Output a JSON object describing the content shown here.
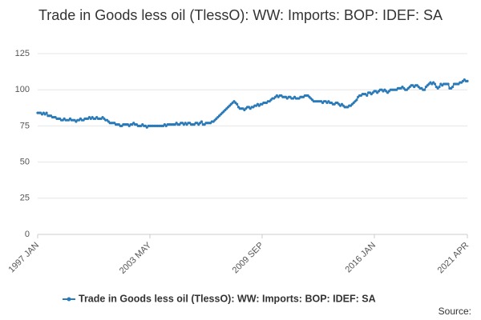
{
  "chart_data": {
    "type": "line",
    "title": "Trade in Goods less oil (TlessO): WW: Imports: BOP: IDEF: SA",
    "source": "Source:",
    "categories": [
      "1997 JAN",
      null,
      null,
      null,
      null,
      null,
      null,
      null,
      null,
      null,
      null,
      null,
      null,
      null,
      null,
      null,
      null,
      null,
      null,
      null,
      null,
      null,
      null,
      null,
      null,
      null,
      null,
      null,
      null,
      null,
      null,
      null,
      null,
      null,
      null,
      null,
      null,
      null,
      null,
      null,
      null,
      null,
      null,
      null,
      null,
      null,
      null,
      null,
      null,
      null,
      null,
      null,
      null,
      null,
      null,
      null,
      null,
      null,
      null,
      null,
      null,
      null,
      null,
      null,
      null,
      null,
      null,
      null,
      null,
      null,
      null,
      null,
      null,
      null,
      null,
      null,
      "2003 MAY",
      null,
      null,
      null,
      null,
      null,
      null,
      null,
      null,
      null,
      null,
      null,
      null,
      null,
      null,
      null,
      null,
      null,
      null,
      null,
      null,
      null,
      null,
      null,
      null,
      null,
      null,
      null,
      null,
      null,
      null,
      null,
      null,
      null,
      null,
      null,
      null,
      null,
      null,
      null,
      null,
      null,
      null,
      null,
      null,
      null,
      null,
      null,
      null,
      null,
      null,
      null,
      null,
      null,
      null,
      null,
      null,
      null,
      null,
      null,
      null,
      null,
      null,
      null,
      null,
      null,
      null,
      null,
      null,
      null,
      null,
      null,
      null,
      null,
      null,
      null,
      "2009 SEP",
      null,
      null,
      null,
      null,
      null,
      null,
      null,
      null,
      null,
      null,
      null,
      null,
      null,
      null,
      null,
      null,
      null,
      null,
      null,
      null,
      null,
      null,
      null,
      null,
      null,
      null,
      null,
      null,
      null,
      null,
      null,
      null,
      null,
      null,
      null,
      null,
      null,
      null,
      null,
      null,
      null,
      null,
      null,
      null,
      null,
      null,
      null,
      null,
      null,
      null,
      null,
      null,
      null,
      null,
      null,
      null,
      null,
      null,
      null,
      null,
      null,
      null,
      null,
      null,
      null,
      null,
      null,
      null,
      null,
      null,
      null,
      null,
      null,
      null,
      null,
      "2016 JAN",
      null,
      null,
      null,
      null,
      null,
      null,
      null,
      null,
      null,
      null,
      null,
      null,
      null,
      null,
      null,
      null,
      null,
      null,
      null,
      null,
      null,
      null,
      null,
      null,
      null,
      null,
      null,
      null,
      null,
      null,
      null,
      null,
      null,
      null,
      null,
      null,
      null,
      null,
      null,
      null,
      null,
      null,
      null,
      null,
      null,
      null,
      null,
      null,
      null,
      null,
      null,
      null,
      null,
      null,
      null,
      null,
      null,
      null,
      null,
      null,
      null,
      null,
      "2021 APR"
    ],
    "series": [
      {
        "name": "Trade in Goods less oil (TlessO): WW: Imports: BOP: IDEF: SA",
        "color": "#2a7ab8",
        "values": [
          84,
          84,
          84,
          83,
          84,
          83,
          84,
          82,
          82,
          82,
          81,
          81,
          81,
          80,
          80,
          80,
          79,
          79,
          80,
          79,
          79,
          79,
          80,
          79,
          79,
          79,
          78,
          79,
          79,
          80,
          79,
          79,
          80,
          80,
          80,
          81,
          80,
          81,
          80,
          80,
          81,
          80,
          80,
          80,
          81,
          80,
          79,
          79,
          78,
          77,
          77,
          77,
          77,
          76,
          76,
          76,
          75,
          75,
          76,
          76,
          76,
          76,
          75,
          76,
          76,
          77,
          76,
          76,
          75,
          75,
          75,
          76,
          75,
          75,
          74,
          75,
          75,
          75,
          75,
          75,
          75,
          75,
          75,
          75,
          75,
          75,
          76,
          75,
          76,
          76,
          76,
          76,
          76,
          76,
          77,
          76,
          76,
          77,
          77,
          76,
          77,
          76,
          77,
          77,
          76,
          76,
          76,
          77,
          77,
          76,
          77,
          78,
          76,
          76,
          77,
          77,
          77,
          77,
          78,
          78,
          79,
          80,
          81,
          82,
          83,
          84,
          85,
          86,
          87,
          88,
          89,
          90,
          91,
          92,
          91,
          90,
          88,
          87,
          87,
          87,
          86,
          87,
          88,
          88,
          87,
          88,
          88,
          89,
          89,
          90,
          89,
          90,
          90,
          91,
          91,
          91,
          92,
          92,
          93,
          94,
          94,
          95,
          96,
          95,
          96,
          96,
          95,
          95,
          95,
          94,
          95,
          95,
          94,
          94,
          95,
          94,
          94,
          94,
          95,
          95,
          95,
          96,
          96,
          96,
          95,
          94,
          93,
          92,
          92,
          92,
          92,
          92,
          92,
          91,
          92,
          92,
          91,
          92,
          91,
          91,
          90,
          90,
          91,
          91,
          90,
          89,
          90,
          89,
          88,
          88,
          88,
          89,
          89,
          90,
          91,
          92,
          93,
          95,
          96,
          96,
          97,
          97,
          97,
          96,
          98,
          98,
          97,
          98,
          99,
          99,
          98,
          99,
          100,
          100,
          99,
          100,
          99,
          98,
          99,
          100,
          100,
          100,
          100,
          100,
          101,
          101,
          101,
          102,
          101,
          100,
          100,
          101,
          102,
          103,
          103,
          102,
          103,
          103,
          102,
          101,
          101,
          100,
          100,
          102,
          103,
          104,
          105,
          104,
          105,
          104,
          102,
          101,
          102,
          104,
          103,
          104,
          104,
          104,
          104,
          101,
          101,
          102,
          104,
          104,
          104,
          104,
          105,
          105,
          106,
          107,
          106,
          106
        ]
      }
    ],
    "ylim": [
      0,
      125
    ],
    "yticks": [
      0,
      25,
      50,
      75,
      100,
      125
    ],
    "grid": true,
    "legend": "bottom"
  }
}
